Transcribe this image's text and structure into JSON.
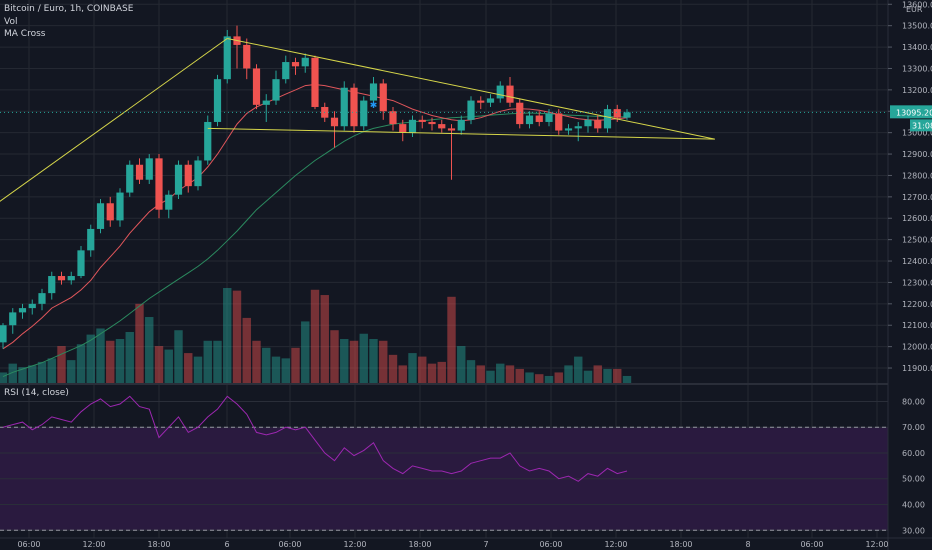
{
  "legend": {
    "symbol": "Bitcoin / Euro, 1h, COINBASE",
    "vol": "Vol",
    "ma": "MA Cross",
    "rsi": "RSI (14, close)"
  },
  "price_axis": {
    "currency": "EUR",
    "current_price": "13095.20",
    "countdown": "31:08"
  },
  "colors": {
    "background": "#131722",
    "up": "#26a69a",
    "down": "#ef5350",
    "fast_ma": "#e0565b",
    "slow_ma": "#2b8a5f",
    "trendline": "#d6d64a",
    "rsi_line": "#9c27b0",
    "rsi_band": "#2a1a3f"
  },
  "chart_data": [
    {
      "type": "candlestick",
      "panel": "price",
      "y_ticks": [
        11900,
        12000,
        12100,
        12200,
        12300,
        12400,
        12500,
        12600,
        12700,
        12800,
        12900,
        13000,
        13100,
        13200,
        13300,
        13400,
        13500,
        13600
      ],
      "ylim": [
        11830,
        13620
      ],
      "x_ticks": [
        "06:00",
        "12:00",
        "18:00",
        "6",
        "06:00",
        "12:00",
        "18:00",
        "7",
        "06:00",
        "12:00",
        "18:00",
        "8",
        "06:00",
        "12:00"
      ],
      "candles": [
        [
          12020,
          12100,
          11990,
          12110
        ],
        [
          12100,
          12160,
          12060,
          12180
        ],
        [
          12160,
          12180,
          12130,
          12200
        ],
        [
          12180,
          12200,
          12150,
          12220
        ],
        [
          12200,
          12250,
          12170,
          12270
        ],
        [
          12250,
          12330,
          12220,
          12350
        ],
        [
          12330,
          12310,
          12290,
          12350
        ],
        [
          12310,
          12330,
          12290,
          12350
        ],
        [
          12330,
          12450,
          12320,
          12470
        ],
        [
          12450,
          12550,
          12420,
          12570
        ],
        [
          12550,
          12670,
          12530,
          12690
        ],
        [
          12670,
          12590,
          12560,
          12700
        ],
        [
          12590,
          12720,
          12560,
          12740
        ],
        [
          12720,
          12850,
          12700,
          12870
        ],
        [
          12850,
          12780,
          12760,
          12880
        ],
        [
          12780,
          12880,
          12760,
          12900
        ],
        [
          12880,
          12640,
          12600,
          12900
        ],
        [
          12640,
          12710,
          12600,
          12730
        ],
        [
          12710,
          12850,
          12690,
          12870
        ],
        [
          12850,
          12750,
          12720,
          12870
        ],
        [
          12750,
          12870,
          12730,
          12890
        ],
        [
          12870,
          13050,
          12850,
          13080
        ],
        [
          13050,
          13250,
          13030,
          13270
        ],
        [
          13250,
          13450,
          13230,
          13480
        ],
        [
          13450,
          13410,
          13300,
          13500
        ],
        [
          13410,
          13300,
          13250,
          13440
        ],
        [
          13300,
          13130,
          13110,
          13320
        ],
        [
          13130,
          13150,
          13050,
          13180
        ],
        [
          13150,
          13250,
          13130,
          13290
        ],
        [
          13250,
          13330,
          13230,
          13360
        ],
        [
          13330,
          13310,
          13270,
          13350
        ],
        [
          13310,
          13350,
          13280,
          13370
        ],
        [
          13350,
          13120,
          13110,
          13360
        ],
        [
          13120,
          13070,
          13050,
          13140
        ],
        [
          13070,
          13030,
          12930,
          13100
        ],
        [
          13030,
          13210,
          13010,
          13240
        ],
        [
          13210,
          13030,
          13000,
          13230
        ],
        [
          13030,
          13150,
          13010,
          13170
        ],
        [
          13150,
          13230,
          13120,
          13260
        ],
        [
          13230,
          13100,
          13060,
          13250
        ],
        [
          13100,
          13040,
          13010,
          13120
        ],
        [
          13040,
          13000,
          12960,
          13060
        ],
        [
          13000,
          13060,
          12980,
          13080
        ],
        [
          13060,
          13050,
          13020,
          13080
        ],
        [
          13050,
          13040,
          13010,
          13070
        ],
        [
          13040,
          13020,
          13000,
          13060
        ],
        [
          13020,
          13010,
          12780,
          13040
        ],
        [
          13010,
          13060,
          12990,
          13080
        ],
        [
          13060,
          13150,
          13040,
          13170
        ],
        [
          13150,
          13140,
          13110,
          13170
        ],
        [
          13140,
          13160,
          13120,
          13180
        ],
        [
          13160,
          13220,
          13140,
          13240
        ],
        [
          13220,
          13140,
          13120,
          13260
        ],
        [
          13140,
          13040,
          13020,
          13160
        ],
        [
          13040,
          13080,
          13020,
          13100
        ],
        [
          13080,
          13050,
          13030,
          13100
        ],
        [
          13050,
          13090,
          13030,
          13110
        ],
        [
          13090,
          13010,
          12990,
          13110
        ],
        [
          13010,
          13020,
          12990,
          13040
        ],
        [
          13020,
          13030,
          12960,
          13050
        ],
        [
          13030,
          13060,
          13000,
          13080
        ],
        [
          13060,
          13020,
          13000,
          13080
        ],
        [
          13020,
          13110,
          13000,
          13130
        ],
        [
          13110,
          13070,
          13050,
          13130
        ],
        [
          13070,
          13095,
          13060,
          13110
        ]
      ],
      "fast_ma": [
        11990,
        12020,
        12060,
        12095,
        12135,
        12180,
        12205,
        12230,
        12265,
        12310,
        12370,
        12420,
        12470,
        12530,
        12580,
        12630,
        12665,
        12690,
        12730,
        12760,
        12790,
        12840,
        12900,
        12970,
        13040,
        13090,
        13120,
        13140,
        13160,
        13180,
        13200,
        13220,
        13225,
        13220,
        13210,
        13200,
        13190,
        13180,
        13170,
        13160,
        13150,
        13130,
        13110,
        13095,
        13080,
        13070,
        13060,
        13055,
        13060,
        13070,
        13085,
        13100,
        13110,
        13112,
        13110,
        13105,
        13095,
        13085,
        13075,
        13065,
        13060,
        13058,
        13060,
        13065,
        13070
      ],
      "slow_ma": [
        11860,
        11880,
        11895,
        11910,
        11925,
        11945,
        11965,
        11985,
        12005,
        12030,
        12060,
        12090,
        12120,
        12155,
        12190,
        12225,
        12255,
        12285,
        12315,
        12345,
        12375,
        12410,
        12450,
        12495,
        12540,
        12590,
        12640,
        12680,
        12720,
        12760,
        12800,
        12835,
        12870,
        12900,
        12930,
        12960,
        12985,
        13005,
        13020,
        13030,
        13040,
        13045,
        13050,
        13055,
        13060,
        13065,
        13070,
        13072,
        13075,
        13078,
        13082,
        13085,
        13088,
        13090,
        13092,
        13090,
        13088,
        13085,
        13082,
        13080,
        13078,
        13076,
        13075,
        13074,
        13073
      ],
      "trendlines": [
        [
          [
            -15,
            12200
          ],
          [
            23,
            13440
          ]
        ],
        [
          [
            23,
            13440
          ],
          [
            73,
            12970
          ]
        ],
        [
          [
            21,
            13020
          ],
          [
            73,
            12970
          ]
        ]
      ],
      "marker": {
        "index": 38,
        "price": 13130
      }
    },
    {
      "type": "bar",
      "panel": "volume",
      "values": [
        12,
        22,
        18,
        20,
        24,
        28,
        42,
        26,
        44,
        55,
        62,
        48,
        50,
        58,
        90,
        75,
        42,
        38,
        60,
        34,
        30,
        48,
        48,
        108,
        105,
        74,
        48,
        40,
        30,
        28,
        40,
        70,
        106,
        100,
        60,
        50,
        48,
        56,
        50,
        48,
        32,
        20,
        34,
        30,
        22,
        24,
        98,
        42,
        26,
        20,
        14,
        22,
        20,
        16,
        12,
        10,
        8,
        12,
        20,
        30,
        14,
        20,
        16,
        16,
        8
      ]
    },
    {
      "type": "line",
      "panel": "rsi",
      "y_ticks": [
        30.0,
        40.0,
        50.0,
        60.0,
        70.0,
        80.0
      ],
      "ylim": [
        27,
        86
      ],
      "bands": [
        30,
        70
      ],
      "values": [
        70,
        71,
        72,
        69,
        71,
        74,
        73,
        72,
        76,
        79,
        81,
        78,
        79,
        82,
        78,
        77,
        66,
        70,
        74,
        68,
        70,
        74,
        77,
        82,
        79,
        75,
        68,
        67,
        68,
        70,
        69,
        70,
        65,
        60,
        57,
        62,
        59,
        61,
        64,
        57,
        54,
        52,
        55,
        54,
        53,
        53,
        52,
        53,
        56,
        57,
        58,
        58,
        60,
        55,
        53,
        54,
        53,
        50,
        51,
        49,
        52,
        51,
        54,
        52,
        53
      ]
    }
  ]
}
